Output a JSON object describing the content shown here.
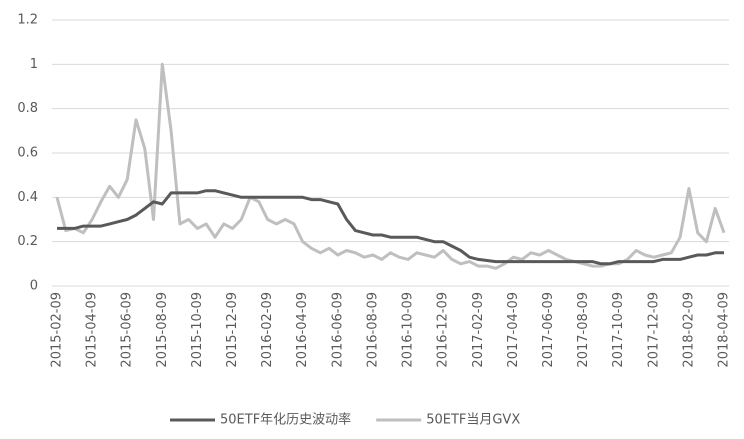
{
  "chart_data": {
    "type": "line",
    "categories": [
      "2015-02-09",
      null,
      null,
      null,
      "2015-04-09",
      null,
      null,
      null,
      "2015-06-09",
      null,
      null,
      null,
      "2015-08-09",
      null,
      null,
      null,
      "2015-10-09",
      null,
      null,
      null,
      "2015-12-09",
      null,
      null,
      null,
      "2016-02-09",
      null,
      null,
      null,
      "2016-04-09",
      null,
      null,
      null,
      "2016-06-09",
      null,
      null,
      null,
      "2016-08-09",
      null,
      null,
      null,
      "2016-10-09",
      null,
      null,
      null,
      "2016-12-09",
      null,
      null,
      null,
      "2017-02-09",
      null,
      null,
      null,
      "2017-04-09",
      null,
      null,
      null,
      "2017-06-09",
      null,
      null,
      null,
      "2017-08-09",
      null,
      null,
      null,
      "2017-10-09",
      null,
      null,
      null,
      "2017-12-09",
      null,
      null,
      null,
      "2018-02-09",
      null,
      null,
      null,
      "2018-04-09"
    ],
    "series": [
      {
        "name": "50ETF年化历史波动率",
        "color": "#595959",
        "width": 3,
        "values": [
          0.26,
          0.26,
          0.26,
          0.27,
          0.27,
          0.27,
          0.28,
          0.29,
          0.3,
          0.32,
          0.35,
          0.38,
          0.37,
          0.42,
          0.42,
          0.42,
          0.42,
          0.43,
          0.43,
          0.42,
          0.41,
          0.4,
          0.4,
          0.4,
          0.4,
          0.4,
          0.4,
          0.4,
          0.4,
          0.39,
          0.39,
          0.38,
          0.37,
          0.3,
          0.25,
          0.24,
          0.23,
          0.23,
          0.22,
          0.22,
          0.22,
          0.22,
          0.21,
          0.2,
          0.2,
          0.18,
          0.16,
          0.13,
          0.12,
          0.115,
          0.11,
          0.11,
          0.11,
          0.11,
          0.11,
          0.11,
          0.11,
          0.11,
          0.11,
          0.11,
          0.11,
          0.11,
          0.1,
          0.1,
          0.11,
          0.11,
          0.11,
          0.11,
          0.11,
          0.12,
          0.12,
          0.12,
          0.13,
          0.14,
          0.14,
          0.15,
          0.15
        ]
      },
      {
        "name": "50ETF当月GVX",
        "color": "#bfbfbf",
        "width": 3,
        "values": [
          0.4,
          0.25,
          0.26,
          0.24,
          0.3,
          0.38,
          0.45,
          0.4,
          0.48,
          0.75,
          0.62,
          0.3,
          1.0,
          0.7,
          0.28,
          0.3,
          0.26,
          0.28,
          0.22,
          0.28,
          0.26,
          0.3,
          0.4,
          0.38,
          0.3,
          0.28,
          0.3,
          0.28,
          0.2,
          0.17,
          0.15,
          0.17,
          0.14,
          0.16,
          0.15,
          0.13,
          0.14,
          0.12,
          0.15,
          0.13,
          0.12,
          0.15,
          0.14,
          0.13,
          0.16,
          0.12,
          0.1,
          0.11,
          0.09,
          0.09,
          0.08,
          0.1,
          0.13,
          0.12,
          0.15,
          0.14,
          0.16,
          0.14,
          0.12,
          0.11,
          0.1,
          0.09,
          0.09,
          0.1,
          0.1,
          0.12,
          0.16,
          0.14,
          0.13,
          0.14,
          0.15,
          0.22,
          0.44,
          0.24,
          0.2,
          0.35,
          0.24
        ]
      }
    ],
    "ylim": [
      0,
      1.2
    ],
    "yticks": [
      0,
      0.2,
      0.4,
      0.6,
      0.8,
      1,
      1.2
    ],
    "grid": true,
    "legend": "bottom"
  }
}
